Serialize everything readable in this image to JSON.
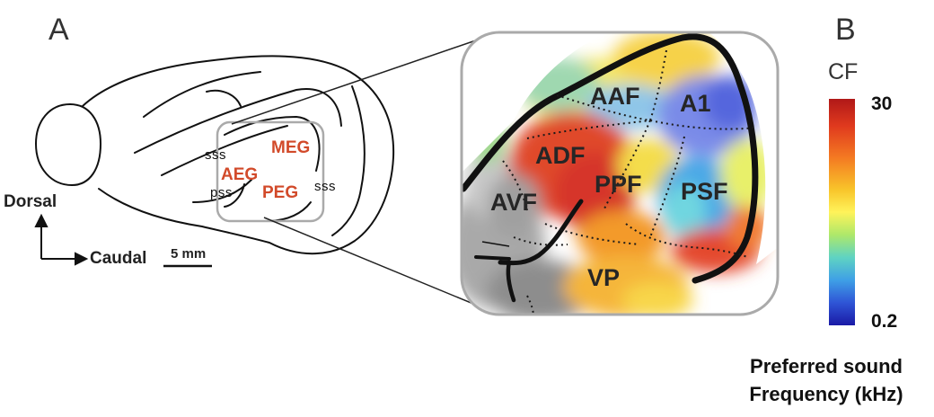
{
  "panels": {
    "a": "A",
    "b": "B"
  },
  "brain_regions": {
    "meg": "MEG",
    "aeg": "AEG",
    "peg": "PEG"
  },
  "sulci": {
    "sss_upper": "sss",
    "pss": "pss",
    "sss_right": "sss"
  },
  "orientation": {
    "dorsal": "Dorsal",
    "caudal": "Caudal",
    "scale_bar": "5 mm"
  },
  "fields": {
    "aaf": "AAF",
    "a1": "A1",
    "adf": "ADF",
    "ppf": "PPF",
    "avf": "AVF",
    "psf": "PSF",
    "vp": "VP"
  },
  "colorbar": {
    "title": "CF",
    "max": "30",
    "min": "0.2",
    "caption_line1": "Preferred sound",
    "caption_line2": "Frequency (kHz)"
  },
  "colors": {
    "region_label": "#d24a2a",
    "inset_frame": "#aaaaaa",
    "colormap": [
      "#b01818",
      "#e03a1e",
      "#f47a22",
      "#f8c42a",
      "#fff35a",
      "#aee86a",
      "#5fd3c2",
      "#3fa0e6",
      "#2f55d6",
      "#1a1aa6"
    ]
  }
}
